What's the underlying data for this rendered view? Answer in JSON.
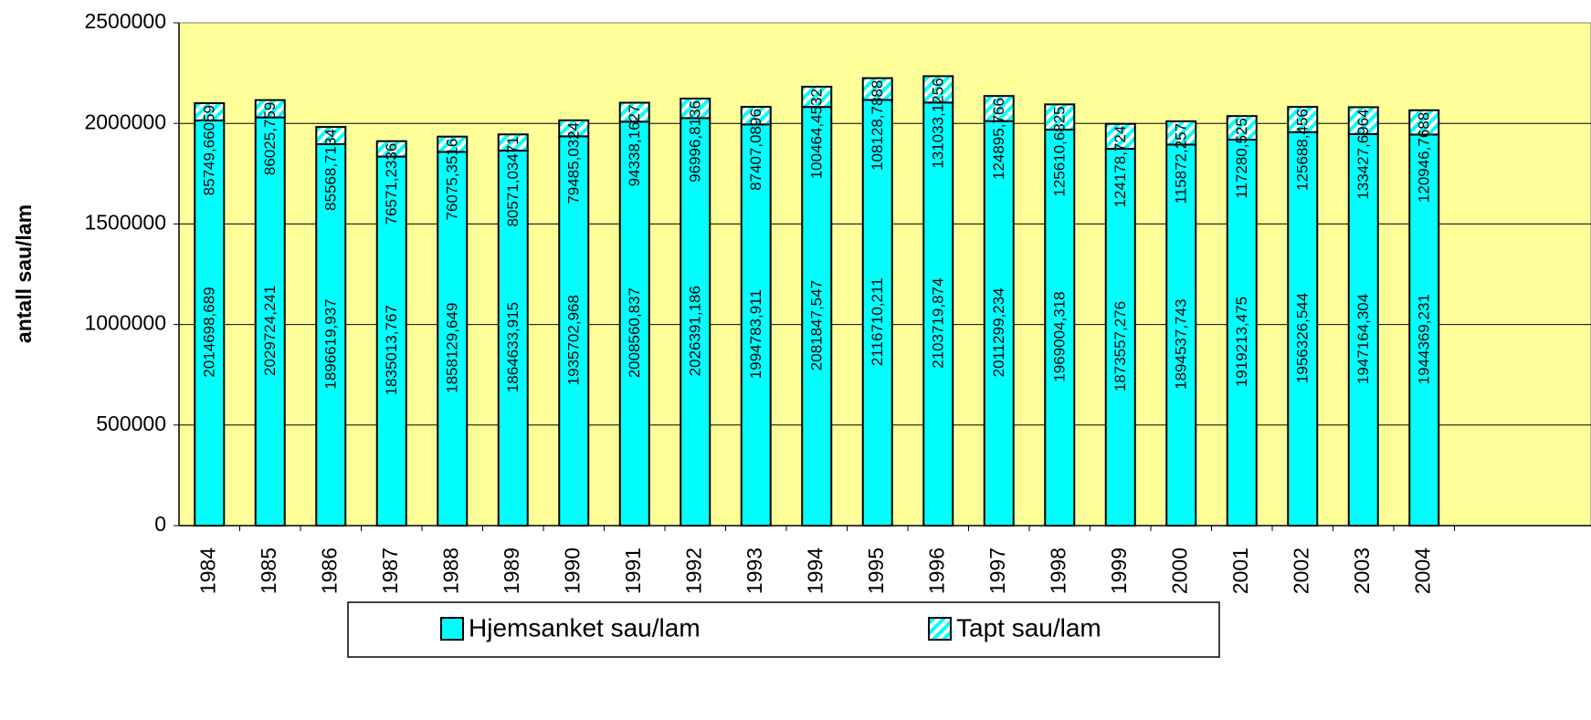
{
  "chart_data": {
    "type": "stacked_bar",
    "y_label": "antall sau/lam",
    "categories": [
      "1984",
      "1985",
      "1986",
      "1987",
      "1988",
      "1989",
      "1990",
      "1991",
      "1992",
      "1993",
      "1994",
      "1995",
      "1996",
      "1997",
      "1998",
      "1999",
      "2000",
      "2001",
      "2002",
      "2003",
      "2004"
    ],
    "series": [
      {
        "name": "Hjemsanket sau/lam",
        "color": "#00ffff",
        "pattern": "solid",
        "values": [
          2014698.689,
          2029724.241,
          1896619.937,
          1835013.767,
          1858129.649,
          1864633.915,
          1935702.968,
          2008560.837,
          2026391.186,
          1994783.911,
          2081847.547,
          2116710.211,
          2103719.874,
          2011299.234,
          1969004.318,
          1873557.276,
          1894537.743,
          1919213.475,
          1956326.544,
          1947164.304,
          1944369.231
        ],
        "value_labels": [
          "2014698,689",
          "2029724,241",
          "1896619,937",
          "1835013,767",
          "1858129,649",
          "1864633,915",
          "1935702,968",
          "2008560,837",
          "2026391,186",
          "1994783,911",
          "2081847,547",
          "2116710,211",
          "2103719,874",
          "2011299,234",
          "1969004,318",
          "1873557,276",
          "1894537,743",
          "1919213,475",
          "1956326,544",
          "1947164,304",
          "1944369,231"
        ]
      },
      {
        "name": "Tapt sau/lam",
        "color": "#00ffff",
        "pattern": "hatch",
        "values": [
          85749.66059,
          86025.759,
          85568.7134,
          76571.2336,
          76075.3516,
          80571.03471,
          79485.0324,
          94338.1627,
          96996.8136,
          87407.0896,
          100464.4532,
          108128.7888,
          131033.1256,
          124895.766,
          125610.6825,
          124178.724,
          115872.257,
          117280.525,
          125688.456,
          133427.6964,
          120946.7688
        ],
        "value_labels": [
          "85749,66059",
          "86025,759",
          "85568,7134",
          "76571,2336",
          "76075,3516",
          "80571,03471",
          "79485,0324",
          "94338,1627",
          "96996,8136",
          "87407,0896",
          "100464,4532",
          "108128,7888",
          "131033,1256",
          "124895,766",
          "125610,6825",
          "124178,724",
          "115872,257",
          "117280,525",
          "125688,456",
          "133427,6964",
          "120946,7688"
        ]
      }
    ],
    "ylim": [
      0,
      2500000
    ],
    "yticks": [
      0,
      500000,
      1000000,
      1500000,
      2000000,
      2500000
    ],
    "grid": true,
    "legend": "bottom",
    "plot_background": "#ffff99"
  }
}
